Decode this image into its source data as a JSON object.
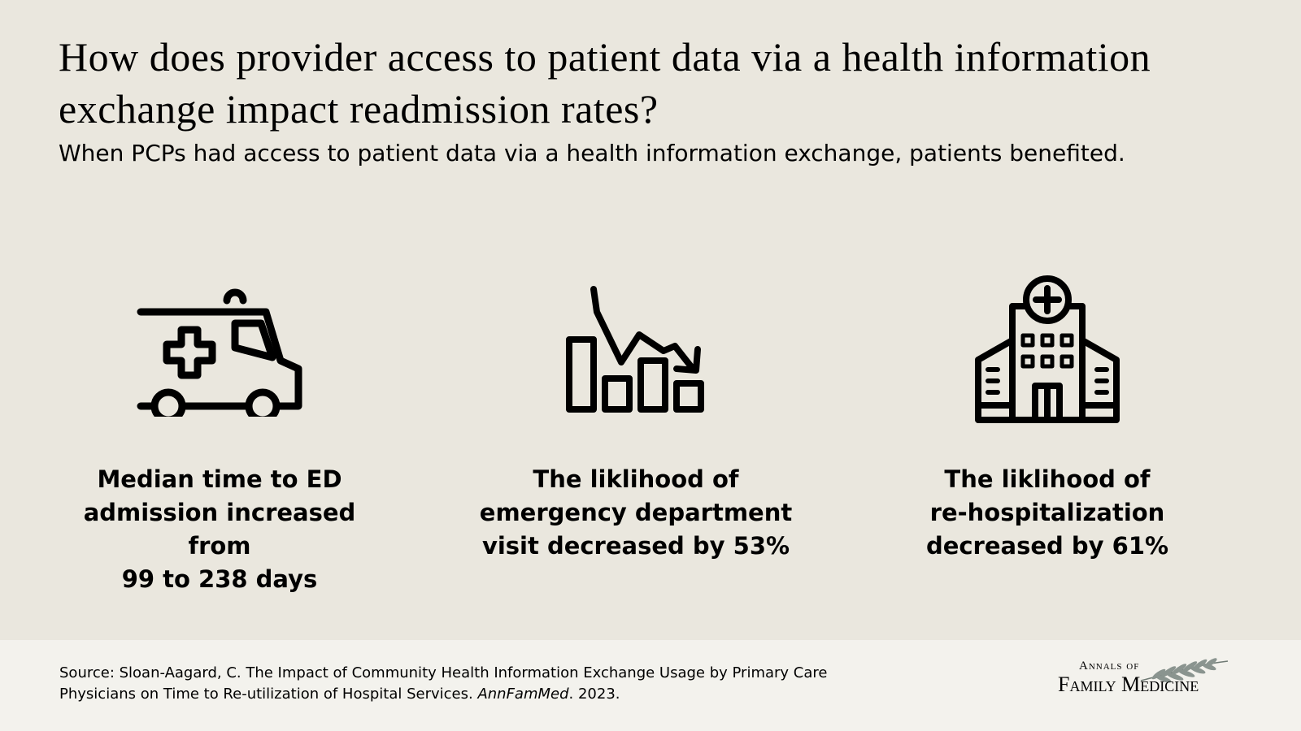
{
  "title": "How does provider access to patient data via a health information exchange impact readmission rates?",
  "subtitle": "When PCPs had access to patient data via a health information exchange, patients benefited.",
  "stats": [
    {
      "icon": "ambulance-icon",
      "text": "Median time to ED\nadmission increased from\n99 to 238 days"
    },
    {
      "icon": "declining-chart-icon",
      "text": "The liklihood of\nemergency department\nvisit decreased by 53%"
    },
    {
      "icon": "hospital-icon",
      "text": "The liklihood of\nre-hospitalization\ndecreased by 61%"
    }
  ],
  "footer": {
    "source_prefix": "Source:  Sloan-Aagard, C. The Impact of Community Health Information Exchange Usage by Primary Care Physicians on Time to Re-utilization of Hospital Services. ",
    "journal": "AnnFamMed",
    "source_suffix": ". 2023.",
    "logo_top": "Annals of",
    "logo_bottom": "Family Medicine"
  },
  "colors": {
    "background": "#eae7de",
    "footer_background": "#f3f2ed",
    "text": "#000000"
  }
}
